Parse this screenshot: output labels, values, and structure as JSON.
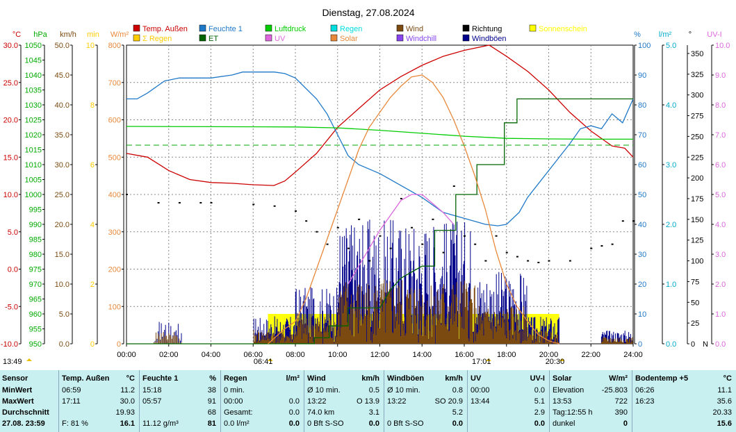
{
  "chart_data": {
    "type": "line",
    "title": "Dienstag, 27.08.2024",
    "x_range": [
      "00:00",
      "24:00"
    ],
    "x_ticks": [
      "00:00",
      "02:00",
      "04:00",
      "06:00",
      "08:00",
      "10:00",
      "12:00",
      "14:00",
      "16:00",
      "18:00",
      "20:00",
      "22:00",
      "24:00"
    ],
    "legend": [
      {
        "name": "Temp. Außen",
        "color": "#cc0000"
      },
      {
        "name": "Feuchte 1",
        "color": "#1e78c8"
      },
      {
        "name": "Luftdruck",
        "color": "#00cc00"
      },
      {
        "name": "Regen",
        "color": "#00dddd"
      },
      {
        "name": "Wind",
        "color": "#7a4a10"
      },
      {
        "name": "Richtung",
        "color": "#000000"
      },
      {
        "name": "Sonnenschein",
        "color": "#ffff00"
      },
      {
        "name": "Σ Regen",
        "color": "#ffcc00"
      },
      {
        "name": "ET",
        "color": "#006400"
      },
      {
        "name": "UV",
        "color": "#dd66dd"
      },
      {
        "name": "Solar",
        "color": "#e8883a"
      },
      {
        "name": "Windchill",
        "color": "#8844ee"
      },
      {
        "name": "Windböen",
        "color": "#00008b"
      }
    ],
    "axes_left": [
      {
        "unit": "°C",
        "color": "#cc0000",
        "range": [
          -10,
          30
        ],
        "ticks": [
          "30.0",
          "25.0",
          "20.0",
          "15.0",
          "10.0",
          "5.0",
          "0.0",
          "-5.0",
          "-10.0"
        ]
      },
      {
        "unit": "hPa",
        "color": "#00aa00",
        "range": [
          950,
          1050
        ],
        "ticks": [
          "1050",
          "1045",
          "1040",
          "1035",
          "1030",
          "1025",
          "1020",
          "1015",
          "1010",
          "1005",
          "1000",
          "995",
          "990",
          "985",
          "980",
          "975",
          "970",
          "965",
          "960",
          "955",
          "950"
        ]
      },
      {
        "unit": "km/h",
        "color": "#7a4a10",
        "range": [
          0,
          50
        ],
        "ticks": [
          "50.0",
          "45.0",
          "40.0",
          "35.0",
          "30.0",
          "25.0",
          "20.0",
          "15.0",
          "10.0",
          "5.0",
          "0.0"
        ]
      },
      {
        "unit": "min",
        "color": "#ffcc00",
        "range": [
          0,
          10
        ],
        "ticks": [
          "10",
          "8",
          "6",
          "4",
          "2",
          "0"
        ]
      },
      {
        "unit": "W/m²",
        "color": "#e8883a",
        "range": [
          0,
          800
        ],
        "ticks": [
          "800",
          "700",
          "600",
          "500",
          "400",
          "300",
          "200",
          "100",
          "0"
        ]
      }
    ],
    "axes_right": [
      {
        "unit": "%",
        "color": "#1e78c8",
        "range": [
          0,
          100
        ],
        "ticks": [
          "100",
          "90",
          "80",
          "70",
          "60",
          "50",
          "40",
          "30",
          "20",
          "10",
          "0"
        ]
      },
      {
        "unit": "l/m²",
        "color": "#00aacc",
        "range": [
          0,
          5
        ],
        "ticks": [
          "5.0",
          "4.0",
          "3.0",
          "2.0",
          "1.0",
          "0.0"
        ]
      },
      {
        "unit": "°",
        "color": "#000000",
        "range": [
          0,
          360
        ],
        "ticks": [
          "350",
          "325",
          "300",
          "275",
          "250",
          "225",
          "200",
          "175",
          "150",
          "125",
          "100",
          "75",
          "50",
          "25",
          "0"
        ],
        "extra": "N"
      },
      {
        "unit": "UV-I",
        "color": "#dd66dd",
        "range": [
          0,
          10
        ],
        "ticks": [
          "10.0",
          "9.0",
          "8.0",
          "7.0",
          "6.0",
          "5.0",
          "4.0",
          "3.0",
          "2.0",
          "1.0",
          "0.0"
        ]
      }
    ],
    "annotations": [
      {
        "text": "13:49",
        "x_hours": 0.5
      },
      {
        "text": "06:41",
        "x_hours": 6.68
      },
      {
        "text": "17:01",
        "x_hours": 17.02
      },
      {
        "text": "20:30",
        "x_hours": 20.5
      }
    ],
    "series": [
      {
        "name": "Temp. Außen",
        "axis": "°C",
        "points": [
          [
            0,
            15.5
          ],
          [
            1,
            15.0
          ],
          [
            2,
            13.2
          ],
          [
            3,
            12.0
          ],
          [
            4,
            11.6
          ],
          [
            5,
            11.5
          ],
          [
            6,
            11.3
          ],
          [
            6.98,
            11.2
          ],
          [
            7.5,
            11.8
          ],
          [
            8,
            13.0
          ],
          [
            9,
            15.5
          ],
          [
            10,
            19.0
          ],
          [
            11,
            21.5
          ],
          [
            12,
            24.0
          ],
          [
            13,
            25.8
          ],
          [
            14,
            27.3
          ],
          [
            15,
            28.5
          ],
          [
            16,
            29.3
          ],
          [
            17.18,
            30.0
          ],
          [
            18,
            28.5
          ],
          [
            19,
            26.5
          ],
          [
            20,
            24.0
          ],
          [
            21,
            21.0
          ],
          [
            22,
            18.5
          ],
          [
            23,
            16.5
          ],
          [
            23.6,
            16.2
          ],
          [
            24,
            15.0
          ]
        ]
      },
      {
        "name": "Feuchte 1",
        "axis": "%",
        "points": [
          [
            0,
            82
          ],
          [
            0.5,
            82
          ],
          [
            1,
            84
          ],
          [
            1.8,
            88
          ],
          [
            2.5,
            89
          ],
          [
            3,
            89
          ],
          [
            4,
            89
          ],
          [
            5,
            90
          ],
          [
            5.5,
            91
          ],
          [
            7,
            91
          ],
          [
            7.5,
            90.5
          ],
          [
            8,
            89
          ],
          [
            9,
            82
          ],
          [
            9.5,
            77
          ],
          [
            10,
            70
          ],
          [
            10.5,
            63
          ],
          [
            11,
            60
          ],
          [
            12,
            57
          ],
          [
            13,
            53
          ],
          [
            14,
            49
          ],
          [
            15,
            44
          ],
          [
            16,
            42
          ],
          [
            17,
            40
          ],
          [
            17.6,
            39.5
          ],
          [
            18,
            40
          ],
          [
            18.6,
            44
          ],
          [
            19,
            49
          ],
          [
            20,
            58
          ],
          [
            21,
            67
          ],
          [
            21.5,
            72
          ],
          [
            22,
            73
          ],
          [
            22.5,
            72
          ],
          [
            23,
            77
          ],
          [
            23.5,
            74
          ],
          [
            24,
            82
          ]
        ]
      },
      {
        "name": "Luftdruck",
        "axis": "hPa",
        "points": [
          [
            0,
            1022.8
          ],
          [
            4,
            1022.7
          ],
          [
            8,
            1022.6
          ],
          [
            10,
            1022.3
          ],
          [
            12,
            1021.5
          ],
          [
            14,
            1020.5
          ],
          [
            16,
            1019.5
          ],
          [
            18,
            1018.8
          ],
          [
            20,
            1018.6
          ],
          [
            22,
            1018.5
          ],
          [
            24,
            1018.5
          ]
        ]
      },
      {
        "name": "ET",
        "axis": "l/m²",
        "points": [
          [
            0,
            0
          ],
          [
            8.9,
            0
          ],
          [
            8.9,
            0.1
          ],
          [
            9.6,
            0.1
          ],
          [
            9.6,
            0.3
          ],
          [
            10.5,
            0.3
          ],
          [
            10.5,
            0.6
          ],
          [
            12,
            0.6
          ],
          [
            12.5,
            0.9
          ],
          [
            13,
            1.1
          ],
          [
            14,
            1.3
          ],
          [
            14.6,
            1.3
          ],
          [
            14.6,
            1.9
          ],
          [
            15.6,
            1.9
          ],
          [
            15.6,
            2.5
          ],
          [
            16.6,
            2.5
          ],
          [
            16.6,
            3.0
          ],
          [
            17.9,
            3.0
          ],
          [
            17.9,
            3.7
          ],
          [
            18.5,
            3.7
          ],
          [
            18.5,
            4.1
          ],
          [
            24,
            4.1
          ]
        ]
      },
      {
        "name": "Solar",
        "axis": "W/m²",
        "points": [
          [
            6.7,
            0
          ],
          [
            7.5,
            40
          ],
          [
            8,
            60
          ],
          [
            8.5,
            120
          ],
          [
            9,
            200
          ],
          [
            9.5,
            280
          ],
          [
            10,
            360
          ],
          [
            10.5,
            440
          ],
          [
            11,
            520
          ],
          [
            11.5,
            580
          ],
          [
            12,
            620
          ],
          [
            12.5,
            660
          ],
          [
            13,
            690
          ],
          [
            13.5,
            715
          ],
          [
            14,
            720
          ],
          [
            14.5,
            700
          ],
          [
            15,
            660
          ],
          [
            15.5,
            600
          ],
          [
            16,
            530
          ],
          [
            16.5,
            450
          ],
          [
            17,
            360
          ],
          [
            17.5,
            250
          ],
          [
            18,
            160
          ],
          [
            18.5,
            100
          ],
          [
            19,
            60
          ],
          [
            19.5,
            25
          ],
          [
            20,
            8
          ],
          [
            20.5,
            0
          ]
        ]
      },
      {
        "name": "UV",
        "axis": "UV-I",
        "points": [
          [
            10.5,
            2.0
          ],
          [
            11,
            2.6
          ],
          [
            11.5,
            3.2
          ],
          [
            12,
            3.8
          ],
          [
            12.5,
            4.3
          ],
          [
            13,
            4.8
          ],
          [
            13.5,
            5.0
          ],
          [
            14,
            5.0
          ],
          [
            14.5,
            4.7
          ],
          [
            15,
            4.4
          ],
          [
            15.5,
            4.0
          ]
        ]
      },
      {
        "name": "Richtung",
        "axis": "°",
        "style": "dots",
        "points": [
          [
            0,
            180
          ],
          [
            1.5,
            170
          ],
          [
            2.5,
            170
          ],
          [
            3.5,
            170
          ],
          [
            4,
            170
          ],
          [
            6,
            168
          ],
          [
            7,
            166
          ],
          [
            8,
            160
          ],
          [
            8.5,
            148
          ],
          [
            9,
            135
          ],
          [
            9.5,
            120
          ],
          [
            10,
            140
          ],
          [
            10.5,
            115
          ],
          [
            11,
            150
          ],
          [
            11.5,
            100
          ],
          [
            12,
            130
          ],
          [
            12.5,
            115
          ],
          [
            13,
            175
          ],
          [
            13.5,
            140
          ],
          [
            14,
            120
          ],
          [
            14.5,
            150
          ],
          [
            15,
            110
          ],
          [
            15.5,
            190
          ],
          [
            16,
            130
          ],
          [
            16.5,
            120
          ],
          [
            17,
            100
          ],
          [
            17.5,
            130
          ],
          [
            18,
            110
          ],
          [
            18.5,
            105
          ],
          [
            19,
            100
          ],
          [
            19.5,
            98
          ],
          [
            20,
            100
          ],
          [
            21,
            100
          ],
          [
            22,
            115
          ],
          [
            22.5,
            118
          ],
          [
            23,
            120
          ],
          [
            23.5,
            148
          ],
          [
            24,
            148
          ]
        ]
      },
      {
        "name": "Sonnenschein",
        "axis": "min",
        "style": "bars",
        "points": [
          [
            6.7,
            1.0
          ],
          [
            8,
            1.0
          ],
          [
            10,
            1.0
          ],
          [
            12,
            1.0
          ],
          [
            14,
            1.0
          ],
          [
            16,
            1.0
          ],
          [
            18.2,
            1.0
          ],
          [
            19,
            1.0
          ],
          [
            20.5,
            0
          ]
        ]
      }
    ]
  },
  "table": {
    "headers": [
      {
        "label": "Sensor",
        "unit": ""
      },
      {
        "label": "Temp. Außen",
        "unit": "°C"
      },
      {
        "label": "Feuchte 1",
        "unit": "%"
      },
      {
        "label": "Regen",
        "unit": "l/m²"
      },
      {
        "label": "Wind",
        "unit": "km/h"
      },
      {
        "label": "Windböen",
        "unit": "km/h"
      },
      {
        "label": "UV",
        "unit": "UV-I"
      },
      {
        "label": "Solar",
        "unit": "W/m²"
      },
      {
        "label": "Bodentemp +5",
        "unit": "°C"
      }
    ],
    "row_labels": [
      "MinWert",
      "MaxWert",
      "Durchschnitt",
      "27.08.  23:59"
    ],
    "temp": [
      [
        "06:59",
        "11.2"
      ],
      [
        "17:11",
        "30.0"
      ],
      [
        "",
        "19.93"
      ],
      [
        "F: 81 %",
        "16.1"
      ]
    ],
    "feuchte": [
      [
        "15:18",
        "38"
      ],
      [
        "05:57",
        "91"
      ],
      [
        "",
        "68"
      ],
      [
        "11.12 g/m³",
        "81"
      ]
    ],
    "regen": [
      [
        "0 min.",
        ""
      ],
      [
        "00:00",
        "0.0"
      ],
      [
        "Gesamt:",
        "0.0"
      ],
      [
        "0.0 l/m²",
        "0.0"
      ]
    ],
    "wind": [
      [
        "Ø 10 min.",
        "0.5"
      ],
      [
        "13:22",
        "O 13.9"
      ],
      [
        "74.0 km",
        "3.1"
      ],
      [
        "0 Bft S-SO",
        "0.0"
      ]
    ],
    "boeen": [
      [
        "Ø 10 min.",
        "0.8"
      ],
      [
        "13:22",
        "SO 20.9"
      ],
      [
        "",
        "5.2"
      ],
      [
        "0 Bft S-SO",
        "0.0"
      ]
    ],
    "uv": [
      [
        "00:00",
        "0.0"
      ],
      [
        "13:44",
        "5.1"
      ],
      [
        "",
        "2.9"
      ],
      [
        "",
        "0.0"
      ]
    ],
    "solar": [
      [
        "Elevation",
        "-25.803"
      ],
      [
        "13:53",
        "722"
      ],
      [
        "Tag:12:55 h",
        "390"
      ],
      [
        "dunkel",
        "0"
      ]
    ],
    "boden": [
      [
        "06:26",
        "11.1"
      ],
      [
        "16:23",
        "35.6"
      ],
      [
        "",
        "20.33"
      ],
      [
        "",
        "15.6"
      ]
    ]
  }
}
